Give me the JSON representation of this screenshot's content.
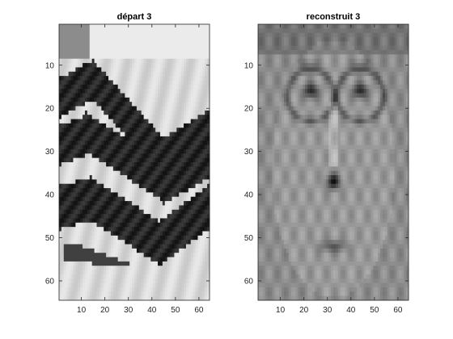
{
  "chart_data": [
    {
      "type": "heatmap",
      "title": "départ 3",
      "colormap": "gray",
      "xlim": [
        0.5,
        64.5
      ],
      "ylim": [
        0.5,
        64.5
      ],
      "y_reversed": true,
      "xticks": [
        10,
        20,
        30,
        40,
        50,
        60
      ],
      "yticks": [
        10,
        20,
        30,
        40,
        50,
        60
      ],
      "content": "grayscale 64x64 image of dark diagonal zig-zag stripes on light background"
    },
    {
      "type": "heatmap",
      "title": "reconstruit 3",
      "colormap": "gray",
      "xlim": [
        0.5,
        64.5
      ],
      "ylim": [
        0.5,
        64.5
      ],
      "y_reversed": true,
      "xticks": [
        10,
        20,
        30,
        40,
        50,
        60
      ],
      "yticks": [
        10,
        20,
        30,
        40,
        50,
        60
      ],
      "content": "grayscale 64x64 reconstructed face image (eyes, glasses, nose, mouth) on mid-gray"
    }
  ]
}
